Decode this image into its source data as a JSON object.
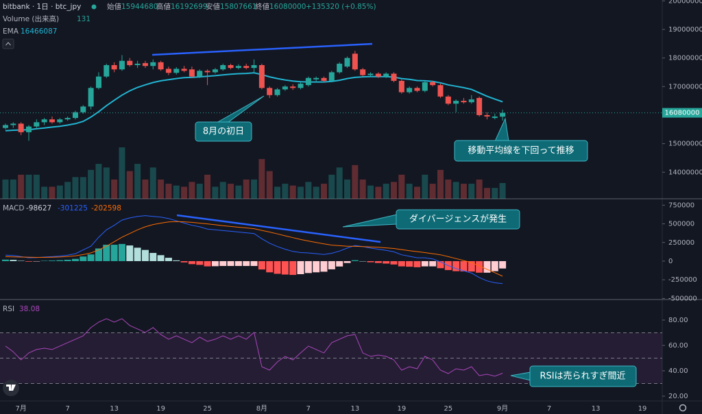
{
  "chart_data": {
    "type": "candlestick",
    "header": {
      "symbol": "bitbank · 1日 · btc_jpy",
      "open_label": "始値",
      "high_label": "高値",
      "low_label": "安値",
      "close_label": "終値",
      "change": "+135320 (+0.85%)"
    },
    "categories": [
      null,
      null,
      "7月",
      null,
      null,
      null,
      null,
      null,
      "7",
      null,
      null,
      null,
      null,
      null,
      "13",
      null,
      null,
      null,
      null,
      null,
      "19",
      null,
      null,
      null,
      null,
      null,
      "25",
      null,
      null,
      null,
      null,
      null,
      null,
      "8月",
      null,
      null,
      null,
      null,
      null,
      "7",
      null,
      null,
      null,
      null,
      null,
      "13",
      null,
      null,
      null,
      null,
      null,
      "19",
      null,
      null,
      null,
      null,
      null,
      "25",
      null,
      null,
      null,
      null,
      null,
      null,
      "9月"
    ],
    "future_x_labels": [
      "7",
      "13",
      "19"
    ],
    "up_color": "#26a69a",
    "down_color": "#ef5350",
    "candles": [
      [
        15550000,
        15700000,
        15500000,
        15650000
      ],
      [
        15650000,
        15750000,
        15550000,
        15700000
      ],
      [
        15700000,
        15750000,
        15300000,
        15400000
      ],
      [
        15400000,
        15650000,
        15100000,
        15600000
      ],
      [
        15600000,
        15850000,
        15500000,
        15750000
      ],
      [
        15750000,
        15900000,
        15650000,
        15850000
      ],
      [
        15850000,
        15950000,
        15700000,
        15750000
      ],
      [
        15750000,
        15900000,
        15700000,
        15850000
      ],
      [
        15850000,
        15950000,
        15800000,
        15900000
      ],
      [
        15900000,
        16150000,
        15850000,
        16100000
      ],
      [
        16100000,
        16350000,
        16050000,
        16300000
      ],
      [
        16300000,
        17000000,
        16200000,
        16950000
      ],
      [
        16950000,
        17500000,
        16900000,
        17350000
      ],
      [
        17350000,
        17800000,
        17300000,
        17750000
      ],
      [
        17750000,
        17850000,
        17500000,
        17600000
      ],
      [
        17600000,
        18100000,
        17550000,
        17900000
      ],
      [
        17900000,
        18000000,
        17700000,
        17750000
      ],
      [
        17750000,
        17900000,
        17650000,
        17800000
      ],
      [
        17820000,
        17900000,
        17650000,
        17720000
      ],
      [
        17720000,
        17950000,
        17600000,
        17850000
      ],
      [
        17850000,
        17900000,
        17550000,
        17600000
      ],
      [
        17620000,
        17700000,
        17400000,
        17480000
      ],
      [
        17480000,
        17680000,
        17420000,
        17620000
      ],
      [
        17620000,
        17720000,
        17500000,
        17550000
      ],
      [
        17600000,
        17700000,
        17300000,
        17350000
      ],
      [
        17350000,
        17600000,
        17300000,
        17550000
      ],
      [
        17550000,
        17600000,
        17050000,
        17500000
      ],
      [
        17500000,
        17650000,
        17450000,
        17600000
      ],
      [
        17600000,
        17800000,
        17550000,
        17750000
      ],
      [
        17750000,
        17800000,
        17600000,
        17650000
      ],
      [
        17650000,
        17780000,
        17600000,
        17720000
      ],
      [
        17720000,
        17800000,
        17600000,
        17650000
      ],
      [
        17650000,
        17950000,
        17500000,
        17750000
      ],
      [
        17750000,
        17800000,
        16900000,
        16950000
      ],
      [
        16950000,
        17000000,
        16600000,
        16700000
      ],
      [
        16700000,
        16950000,
        16650000,
        16900000
      ],
      [
        16900000,
        17050000,
        16850000,
        17000000
      ],
      [
        17000000,
        17080000,
        16880000,
        16950000
      ],
      [
        16950000,
        17150000,
        16900000,
        17100000
      ],
      [
        17050000,
        17350000,
        17000000,
        17300000
      ],
      [
        17250000,
        17350000,
        17150000,
        17300000
      ],
      [
        17300000,
        17350000,
        17150000,
        17200000
      ],
      [
        17200000,
        17550000,
        17150000,
        17500000
      ],
      [
        17500000,
        17850000,
        17450000,
        17800000
      ],
      [
        17700000,
        18050000,
        17650000,
        18000000
      ],
      [
        18150000,
        18250000,
        17550000,
        17600000
      ],
      [
        17600000,
        17650000,
        17350000,
        17400000
      ],
      [
        17400000,
        17500000,
        17350000,
        17450000
      ],
      [
        17450000,
        17500000,
        17300000,
        17350000
      ],
      [
        17350000,
        17500000,
        17300000,
        17450000
      ],
      [
        17450000,
        17500000,
        17150000,
        17200000
      ],
      [
        17200000,
        17250000,
        16750000,
        16800000
      ],
      [
        16800000,
        17000000,
        16750000,
        16950000
      ],
      [
        16950000,
        17000000,
        16800000,
        16850000
      ],
      [
        16850000,
        17200000,
        16800000,
        17150000
      ],
      [
        17150000,
        17200000,
        17000000,
        17050000
      ],
      [
        17050000,
        17100000,
        16600000,
        16650000
      ],
      [
        16650000,
        16700000,
        16350000,
        16400000
      ],
      [
        16400000,
        16550000,
        16100000,
        16500000
      ],
      [
        16500000,
        16600000,
        16400000,
        16450000
      ],
      [
        16450000,
        16700000,
        16400000,
        16550000
      ],
      [
        16600000,
        16650000,
        15950000,
        16000000
      ],
      [
        16000000,
        16100000,
        15850000,
        15950000
      ],
      [
        15900000,
        16050000,
        15850000,
        15950000
      ],
      [
        15944680,
        16192699,
        15807661,
        16080000
      ]
    ],
    "ylim": [
      13070000,
      20030000
    ],
    "yticks": [
      20000000,
      19000000,
      18000000,
      17000000,
      16000000,
      15000000,
      14000000
    ],
    "ema": {
      "name": "EMA",
      "color": "#22b5d3",
      "values": [
        15450000,
        15470000,
        15480000,
        15490000,
        15520000,
        15550000,
        15580000,
        15610000,
        15650000,
        15700000,
        15780000,
        15930000,
        16120000,
        16330000,
        16520000,
        16700000,
        16850000,
        16970000,
        17060000,
        17140000,
        17200000,
        17240000,
        17280000,
        17310000,
        17320000,
        17340000,
        17360000,
        17380000,
        17410000,
        17430000,
        17450000,
        17460000,
        17480000,
        17420000,
        17340000,
        17280000,
        17230000,
        17190000,
        17170000,
        17160000,
        17160000,
        17160000,
        17180000,
        17220000,
        17280000,
        17320000,
        17340000,
        17350000,
        17350000,
        17350000,
        17330000,
        17280000,
        17250000,
        17210000,
        17200000,
        17180000,
        17130000,
        17060000,
        17010000,
        16960000,
        16900000,
        16780000,
        16660000,
        16560000,
        16466087
      ]
    },
    "volume": {
      "name": "Volume (出来高)",
      "values": [
        160,
        160,
        200,
        200,
        200,
        100,
        100,
        110,
        140,
        180,
        180,
        240,
        290,
        260,
        160,
        427,
        230,
        290,
        160,
        260,
        160,
        125,
        110,
        100,
        140,
        125,
        200,
        100,
        140,
        125,
        110,
        160,
        160,
        330,
        230,
        100,
        125,
        110,
        100,
        140,
        100,
        125,
        200,
        260,
        160,
        280,
        160,
        110,
        100,
        125,
        140,
        200,
        125,
        100,
        200,
        125,
        240,
        160,
        140,
        125,
        125,
        160,
        90,
        90,
        131
      ]
    },
    "macd": {
      "title": "MACD",
      "ylim": [
        -515000,
        836000
      ],
      "yticks": [
        750000,
        500000,
        250000,
        0,
        -250000,
        -500000
      ],
      "histogram": {
        "colors": [
          "#26a69a",
          "#b2dfdb",
          "#ff5252",
          "#ffcdd2"
        ],
        "values": [
          20000,
          17000,
          5000,
          -7000,
          -2000,
          5000,
          8000,
          12000,
          18000,
          30000,
          62000,
          90000,
          170000,
          220000,
          220000,
          230000,
          210000,
          180000,
          150000,
          110000,
          80000,
          45000,
          10000,
          -17000,
          -40000,
          -50000,
          -70000,
          -68000,
          -65000,
          -65000,
          -65000,
          -65000,
          -65000,
          -112000,
          -150000,
          -170000,
          -180000,
          -185000,
          -175000,
          -160000,
          -150000,
          -142000,
          -110000,
          -72000,
          -25000,
          12000,
          0,
          -15000,
          -25000,
          -33000,
          -45000,
          -70000,
          -75000,
          -82000,
          -70000,
          -70000,
          -95000,
          -120000,
          -135000,
          -138000,
          -140000,
          -155000,
          -155000,
          -135000,
          -98627
        ]
      },
      "macd_line": {
        "color": "#2962ff",
        "values": [
          80000,
          75000,
          60000,
          45000,
          48000,
          55000,
          60000,
          68000,
          80000,
          100000,
          150000,
          200000,
          320000,
          420000,
          480000,
          550000,
          580000,
          600000,
          610000,
          600000,
          590000,
          570000,
          540000,
          510000,
          480000,
          460000,
          430000,
          420000,
          410000,
          400000,
          390000,
          380000,
          370000,
          300000,
          240000,
          195000,
          160000,
          130000,
          115000,
          110000,
          100000,
          90000,
          105000,
          135000,
          175000,
          210000,
          195000,
          175000,
          160000,
          145000,
          125000,
          85000,
          65000,
          45000,
          45000,
          30000,
          -10000,
          -60000,
          -100000,
          -130000,
          -160000,
          -220000,
          -265000,
          -290000,
          -301225
        ]
      },
      "signal_line": {
        "color": "#ff6d00",
        "values": [
          60000,
          58000,
          55000,
          52000,
          50000,
          50000,
          52000,
          56000,
          62000,
          70000,
          88000,
          110000,
          150000,
          200000,
          260000,
          320000,
          370000,
          420000,
          460000,
          490000,
          510000,
          525000,
          530000,
          527000,
          520000,
          510000,
          500000,
          488000,
          475000,
          465000,
          455000,
          445000,
          435000,
          412000,
          390000,
          365000,
          340000,
          315000,
          290000,
          270000,
          250000,
          232000,
          215000,
          207000,
          200000,
          198000,
          195000,
          190000,
          185000,
          178000,
          170000,
          155000,
          140000,
          127000,
          115000,
          100000,
          85000,
          60000,
          35000,
          8000,
          -20000,
          -65000,
          -110000,
          -155000,
          -202598
        ]
      }
    },
    "rsi": {
      "title": "RSI",
      "color": "#ab47bc",
      "ylim": [
        16.2,
        96.2
      ],
      "yticks": [
        {
          "value": 80,
          "label": "80.00"
        },
        {
          "value": 60,
          "label": "60.00"
        },
        {
          "value": 40,
          "label": "40.00"
        },
        {
          "value": 20,
          "label": "20.00"
        }
      ],
      "band": [
        30,
        70
      ],
      "midline": 50,
      "values": [
        59.5,
        55,
        48.6,
        54.1,
        56.8,
        57.8,
        56.8,
        59.5,
        62.2,
        64.9,
        67.6,
        74.1,
        78.4,
        81.1,
        78.4,
        81.1,
        75.7,
        73,
        70.3,
        74.1,
        68.6,
        64.9,
        67.6,
        64.9,
        62.2,
        66.5,
        63.2,
        64.9,
        67.6,
        64.9,
        67.6,
        64.9,
        70.3,
        43.2,
        40.5,
        47,
        51.4,
        48.6,
        54.1,
        59.5,
        56.8,
        54.1,
        62.2,
        64.9,
        67.6,
        68.6,
        54.1,
        51.4,
        52.4,
        51.4,
        48.6,
        40.5,
        43.2,
        41.6,
        51.4,
        48.6,
        40.5,
        37.8,
        41.6,
        40.5,
        43.2,
        36.2,
        37.3,
        35.7,
        38.08
      ]
    },
    "annotations": [
      "8月の初日",
      "移動平均線を下回って推移",
      "ダイバージェンスが発生",
      "RSIは売られすぎ間近"
    ]
  }
}
